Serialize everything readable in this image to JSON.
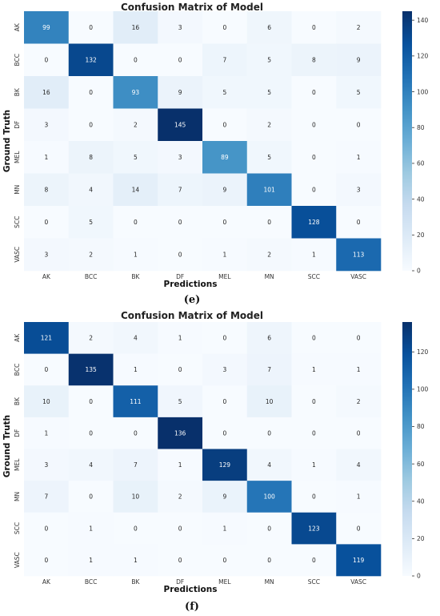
{
  "chart_data": [
    {
      "type": "heatmap",
      "title": "Confusion Matrix of Model",
      "xlabel": "Predictions",
      "ylabel": "Ground Truth",
      "caption": "(e)",
      "x_categories": [
        "AK",
        "BCC",
        "BK",
        "DF",
        "MEL",
        "MN",
        "SCC",
        "VASC"
      ],
      "y_categories": [
        "AK",
        "BCC",
        "BK",
        "DF",
        "MEL",
        "MN",
        "SCC",
        "VASC"
      ],
      "values": [
        [
          99,
          0,
          16,
          3,
          0,
          6,
          0,
          2
        ],
        [
          0,
          132,
          0,
          0,
          7,
          5,
          8,
          9
        ],
        [
          16,
          0,
          93,
          9,
          5,
          5,
          0,
          5
        ],
        [
          3,
          0,
          2,
          145,
          0,
          2,
          0,
          0
        ],
        [
          1,
          8,
          5,
          3,
          89,
          5,
          0,
          1
        ],
        [
          8,
          4,
          14,
          7,
          9,
          101,
          0,
          3
        ],
        [
          0,
          5,
          0,
          0,
          0,
          0,
          128,
          0
        ],
        [
          3,
          2,
          1,
          0,
          1,
          2,
          1,
          113
        ]
      ],
      "colorbar": {
        "min": 0,
        "max": 145,
        "ticks": [
          0,
          20,
          40,
          60,
          80,
          100,
          120,
          140
        ]
      },
      "colormap": "Blues"
    },
    {
      "type": "heatmap",
      "title": "Confusion Matrix of Model",
      "xlabel": "Predictions",
      "ylabel": "Ground Truth",
      "caption": "(f)",
      "x_categories": [
        "AK",
        "BCC",
        "BK",
        "DF",
        "MEL",
        "MN",
        "SCC",
        "VASC"
      ],
      "y_categories": [
        "AK",
        "BCC",
        "BK",
        "DF",
        "MEL",
        "MN",
        "SCC",
        "VASC"
      ],
      "values": [
        [
          121,
          2,
          4,
          1,
          0,
          6,
          0,
          0
        ],
        [
          0,
          135,
          1,
          0,
          3,
          7,
          1,
          1
        ],
        [
          10,
          0,
          111,
          5,
          0,
          10,
          0,
          2
        ],
        [
          1,
          0,
          0,
          136,
          0,
          0,
          0,
          0
        ],
        [
          3,
          4,
          7,
          1,
          129,
          4,
          1,
          4
        ],
        [
          7,
          0,
          10,
          2,
          9,
          100,
          0,
          1
        ],
        [
          0,
          1,
          0,
          0,
          1,
          0,
          123,
          0
        ],
        [
          0,
          1,
          1,
          0,
          0,
          0,
          0,
          119
        ]
      ],
      "colorbar": {
        "min": 0,
        "max": 136,
        "ticks": [
          0,
          20,
          40,
          60,
          80,
          100,
          120
        ]
      },
      "colormap": "Blues"
    }
  ]
}
